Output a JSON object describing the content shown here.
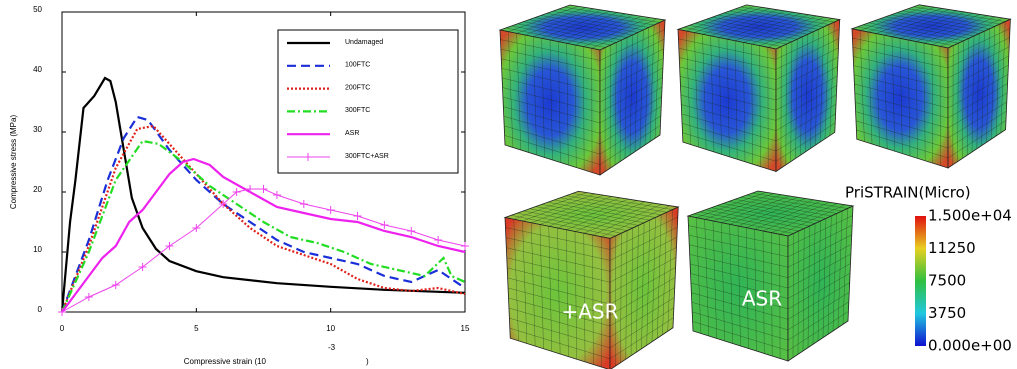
{
  "chart_data": {
    "type": "line",
    "ylabel": "Compressive stress (MPa)",
    "xlabel": "Compressive strain (10",
    "xlabel_exponent": "-3",
    "xlabel_end": ")",
    "xlim": [
      0,
      15
    ],
    "xticks": [
      0,
      5,
      10,
      15
    ],
    "ylim": [
      0,
      50
    ],
    "yticks": [
      0,
      10,
      20,
      30,
      40,
      50
    ],
    "grid": false,
    "legend": "upper right",
    "series": [
      {
        "name": "Undamaged",
        "color": "#000000",
        "dash": "none",
        "width": 2.2,
        "x": [
          0,
          0.3,
          0.5,
          0.8,
          1.2,
          1.6,
          1.8,
          2.0,
          2.3,
          2.6,
          3,
          3.5,
          4,
          5,
          6,
          8,
          10,
          12,
          15
        ],
        "values": [
          0,
          15,
          22,
          34,
          36,
          39,
          38.5,
          35,
          27,
          19,
          14,
          10.5,
          8.5,
          6.8,
          5.8,
          4.8,
          4.2,
          3.7,
          3.2
        ]
      },
      {
        "name": "100FTC",
        "color": "#1a2fd8",
        "dash": "9,5",
        "width": 2.2,
        "x": [
          0,
          1,
          1.7,
          2.3,
          2.8,
          3.2,
          4,
          5,
          6,
          7,
          8,
          9,
          10,
          11,
          12,
          13,
          14,
          15
        ],
        "values": [
          0,
          12,
          22,
          29,
          32.5,
          32,
          27,
          22,
          18,
          15,
          12,
          10,
          9,
          8,
          6,
          5,
          7,
          4
        ]
      },
      {
        "name": "200FTC",
        "color": "#e0201a",
        "dash": "2,2",
        "width": 2.2,
        "x": [
          0,
          1,
          2,
          2.8,
          3.4,
          4,
          5,
          6,
          7,
          8,
          9,
          10,
          11,
          12,
          13,
          14,
          15
        ],
        "values": [
          0,
          11,
          24,
          30.5,
          31,
          28,
          23,
          18,
          14,
          11,
          9.5,
          8,
          5.5,
          4,
          3.5,
          4,
          3
        ]
      },
      {
        "name": "300FTC",
        "color": "#22dd22",
        "dash": "8,3,2,3",
        "width": 2.2,
        "x": [
          0,
          1,
          2,
          3,
          3.6,
          4.5,
          5.5,
          6.5,
          7.5,
          8.5,
          9.5,
          10.5,
          11.5,
          12.5,
          13.5,
          14.2,
          14.5,
          15
        ],
        "values": [
          0,
          10,
          22,
          28.5,
          28,
          25,
          21,
          18,
          15,
          12.5,
          11.5,
          10,
          8,
          7,
          6,
          9,
          6,
          5
        ]
      },
      {
        "name": "ASR",
        "color": "#ee22ee",
        "dash": "none",
        "width": 2.2,
        "x": [
          0,
          1,
          1.5,
          2,
          2.5,
          3,
          3.5,
          4,
          4.5,
          4.9,
          5.5,
          6,
          7,
          8,
          9,
          10,
          11,
          12,
          13,
          14,
          15
        ],
        "values": [
          0,
          6,
          9,
          11,
          15,
          17,
          20,
          23,
          25,
          25.5,
          24.5,
          22.5,
          20,
          17.5,
          16.5,
          15.5,
          15,
          13.5,
          12.5,
          11,
          10
        ]
      },
      {
        "name": "300FTC+ASR",
        "color": "#ee44ee",
        "dash": "none",
        "width": 1,
        "marker": "+",
        "x": [
          0,
          1,
          2,
          3,
          4,
          5,
          6,
          6.5,
          7,
          7.5,
          8,
          9,
          10,
          11,
          12,
          13,
          14,
          15
        ],
        "values": [
          0,
          2.5,
          4.5,
          7.5,
          11,
          14,
          18,
          20,
          20.5,
          20.5,
          19.5,
          18,
          17,
          16,
          14.5,
          13.5,
          12,
          11
        ]
      }
    ]
  },
  "figure": {
    "cube_labels": [
      "+ASR",
      "ASR"
    ],
    "colorbar": {
      "title": "PriSTRAIN(Micro)",
      "labels": [
        "1.500e+04",
        "11250",
        "7500",
        "3750",
        "0.000e+00"
      ]
    }
  }
}
